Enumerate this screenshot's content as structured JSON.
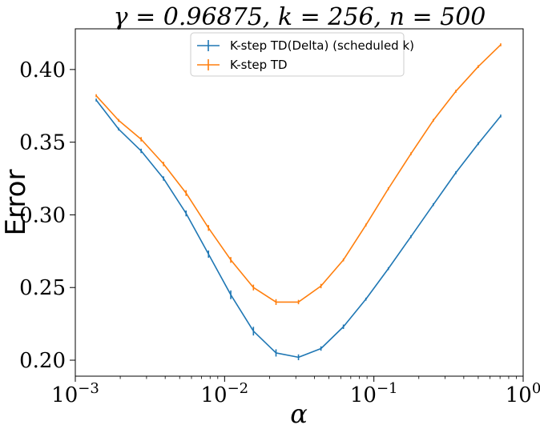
{
  "chart_data": {
    "type": "line",
    "title": "γ = 0.96875, k = 256, n = 500",
    "xlabel": "α",
    "ylabel": "Error",
    "xscale": "log",
    "xlim": [
      0.001,
      1
    ],
    "ylim": [
      0.189,
      0.428
    ],
    "x_ticks": [
      {
        "value": 0.001,
        "base": "10",
        "exp": "−3"
      },
      {
        "value": 0.01,
        "base": "10",
        "exp": "−2"
      },
      {
        "value": 0.1,
        "base": "10",
        "exp": "−1"
      },
      {
        "value": 1,
        "base": "10",
        "exp": "0"
      }
    ],
    "y_ticks": [
      0.2,
      0.25,
      0.3,
      0.35,
      0.4
    ],
    "y_tick_labels": [
      "0.20",
      "0.25",
      "0.30",
      "0.35",
      "0.40"
    ],
    "legend_position": "top-center",
    "grid": false,
    "x": [
      0.00138,
      0.00195,
      0.00276,
      0.0039,
      0.00552,
      0.0078,
      0.011,
      0.0156,
      0.0221,
      0.03125,
      0.0442,
      0.0625,
      0.0884,
      0.125,
      0.177,
      0.25,
      0.354,
      0.5,
      0.707
    ],
    "series": [
      {
        "name": "K-step TD(Delta) (scheduled k)",
        "color": "#1f77b4",
        "values": [
          0.379,
          0.359,
          0.344,
          0.325,
          0.301,
          0.273,
          0.245,
          0.22,
          0.205,
          0.202,
          0.208,
          0.223,
          0.242,
          0.263,
          0.285,
          0.307,
          0.329,
          0.349,
          0.368
        ],
        "errors": [
          0.001,
          0.001,
          0.0015,
          0.0015,
          0.002,
          0.0025,
          0.003,
          0.003,
          0.0025,
          0.002,
          0.0015,
          0.0015,
          0.001,
          0.001,
          0.001,
          0.001,
          0.001,
          0.001,
          0.001
        ]
      },
      {
        "name": "K-step TD",
        "color": "#ff7f0e",
        "values": [
          0.382,
          0.365,
          0.352,
          0.335,
          0.315,
          0.291,
          0.269,
          0.25,
          0.24,
          0.24,
          0.251,
          0.269,
          0.293,
          0.318,
          0.342,
          0.365,
          0.385,
          0.402,
          0.417
        ],
        "errors": [
          0.001,
          0.001,
          0.0015,
          0.0015,
          0.002,
          0.002,
          0.002,
          0.002,
          0.002,
          0.0015,
          0.0015,
          0.001,
          0.001,
          0.001,
          0.001,
          0.001,
          0.001,
          0.001,
          0.001
        ]
      }
    ]
  }
}
